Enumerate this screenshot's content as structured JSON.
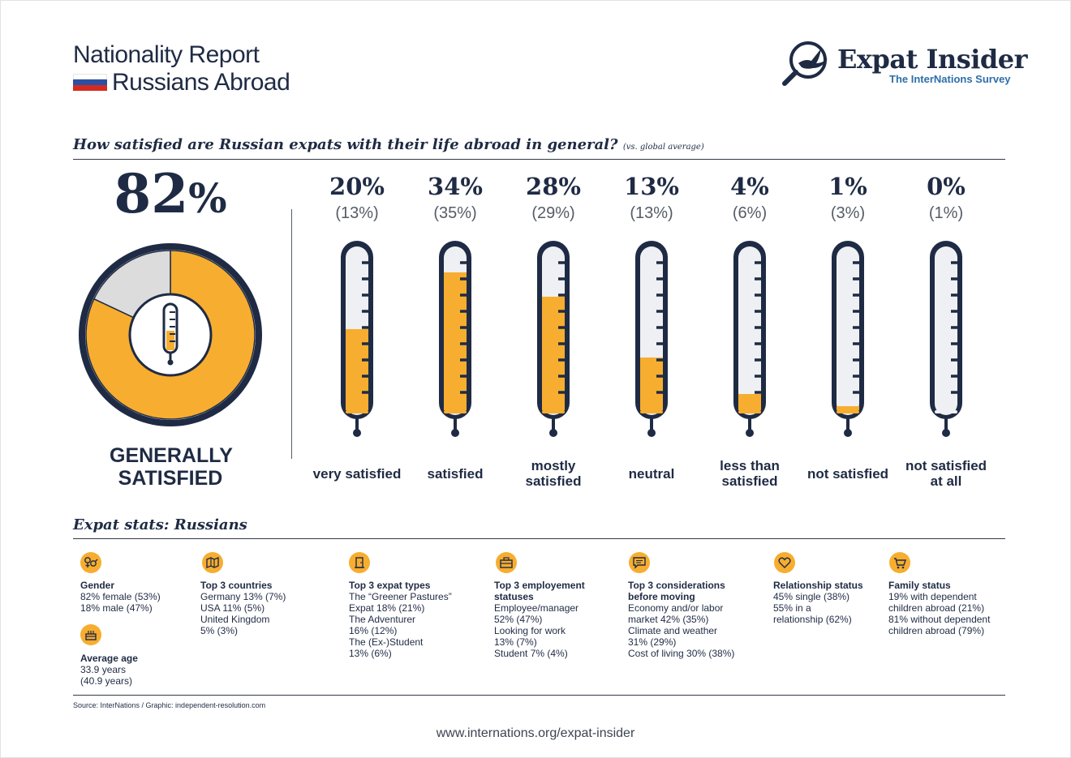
{
  "header": {
    "title": "Nationality Report",
    "subtitle": "Russians Abroad",
    "flag_colors": [
      "#ffffff",
      "#2c4fa3",
      "#d52b1e"
    ]
  },
  "logo": {
    "name": "Expat Insider",
    "tagline": "The InterNations Survey",
    "icon": "bird-magnifier-icon"
  },
  "colors": {
    "navy": "#1f2b44",
    "accent": "#f7ad2f",
    "tube": "#eef0f3",
    "grey": "#dcdcdc"
  },
  "question": {
    "text": "How satisfied are Russian expats with their life abroad in general?",
    "note": "(vs. global average)"
  },
  "summary": {
    "percent": "82",
    "percent_sign": "%",
    "label": "GENERALLY SATISFIED",
    "icon": "thermometer-icon"
  },
  "chart_data": {
    "type": "bar",
    "title": "How satisfied are Russian expats with their life abroad in general?",
    "categories": [
      "very satisfied",
      "satisfied",
      "mostly satisfied",
      "neutral",
      "less than satisfied",
      "not satisfied",
      "not satisfied at all"
    ],
    "series": [
      {
        "name": "Russians",
        "values": [
          20,
          34,
          28,
          13,
          4,
          1,
          0
        ]
      },
      {
        "name": "global average",
        "values": [
          13,
          35,
          29,
          13,
          6,
          3,
          1
        ]
      }
    ],
    "percent_labels": [
      "20%",
      "34%",
      "28%",
      "13%",
      "4%",
      "1%",
      "0%"
    ],
    "global_labels": [
      "(13%)",
      "(35%)",
      "(29%)",
      "(13%)",
      "(6%)",
      "(3%)",
      "(1%)"
    ],
    "donut": {
      "values": [
        82,
        18
      ],
      "labels": [
        "generally satisfied",
        "other"
      ]
    },
    "ylim": [
      0,
      40
    ]
  },
  "stats": {
    "heading": "Expat stats: Russians",
    "gender": {
      "title": "Gender",
      "lines": [
        "82% female (53%)",
        "18% male (47%)"
      ],
      "icon": "gender-icon"
    },
    "age": {
      "title": "Average age",
      "lines": [
        "33.9 years",
        "(40.9 years)"
      ],
      "icon": "cake-icon"
    },
    "countries": {
      "title": "Top 3 countries",
      "lines": [
        "Germany 13% (7%)",
        "USA 11% (5%)",
        "United Kingdom",
        "5% (3%)"
      ],
      "icon": "map-icon"
    },
    "types": {
      "title": "Top 3 expat types",
      "lines": [
        "The “Greener Pastures”",
        "Expat 18% (21%)",
        "The Adventurer",
        "16% (12%)",
        "The (Ex-)Student",
        "13% (6%)"
      ],
      "icon": "door-icon"
    },
    "employment": {
      "title": "Top 3 employement statuses",
      "lines": [
        "Employee/manager",
        "52% (47%)",
        "Looking for work",
        "13% (7%)",
        "Student 7% (4%)"
      ],
      "icon": "briefcase-icon"
    },
    "considerations": {
      "title": "Top 3 considerations before moving",
      "lines": [
        "Economy and/or labor",
        "market 42% (35%)",
        "Climate and weather",
        "31% (29%)",
        "Cost of living 30% (38%)"
      ],
      "icon": "speech-bubble-icon"
    },
    "relationship": {
      "title": "Relationship status",
      "lines": [
        "45% single (38%)",
        "55% in a",
        "relationship (62%)"
      ],
      "icon": "heart-icon"
    },
    "family": {
      "title": "Family status",
      "lines": [
        "19% with dependent",
        "children abroad (21%)",
        "81% without dependent",
        "children abroad (79%)"
      ],
      "icon": "stroller-icon"
    }
  },
  "footer": {
    "source": "Source: InterNations / Graphic: independent-resolution.com",
    "url": "www.internations.org/expat-insider"
  }
}
